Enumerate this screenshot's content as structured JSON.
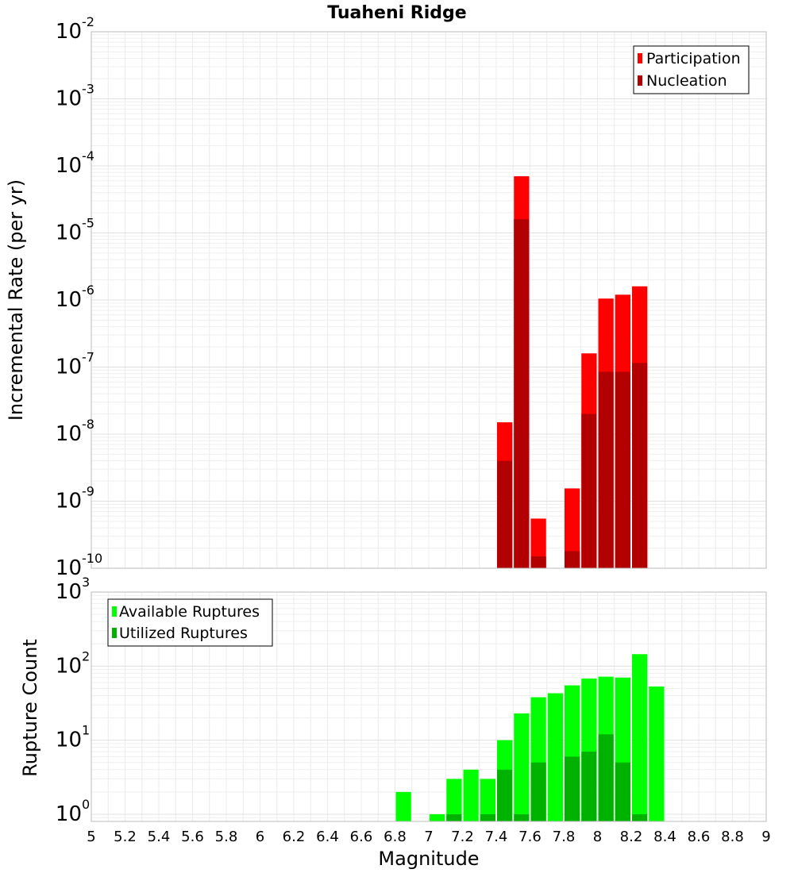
{
  "chart_data": [
    {
      "type": "bar",
      "title": "Tuaheni Ridge",
      "xlabel": "Magnitude",
      "ylabel": "Incremental Rate (per yr)",
      "yscale": "log",
      "ylim": [
        1e-10,
        0.01
      ],
      "xlim": [
        5,
        9
      ],
      "y_tick_exponents": [
        "-2",
        "-3",
        "-4",
        "-5",
        "-6",
        "-7",
        "-8",
        "-9",
        "-10"
      ],
      "y_tick_base": "10",
      "legend": {
        "placement": "top-right",
        "entries": [
          "Participation",
          "Nucleation"
        ]
      },
      "grid": true,
      "colors": {
        "participation": "#ff0000",
        "nucleation": "#b20000"
      },
      "series": [
        {
          "name": "Participation",
          "x": [
            7.45,
            7.55,
            7.65,
            7.85,
            7.95,
            8.05,
            8.15,
            8.25
          ],
          "values": [
            1.5e-08,
            7e-05,
            5.5e-10,
            1.55e-09,
            1.6e-07,
            1.05e-06,
            1.2e-06,
            1.6e-06
          ]
        },
        {
          "name": "Nucleation",
          "x": [
            7.45,
            7.55,
            7.65,
            7.85,
            7.95,
            8.05,
            8.15,
            8.25
          ],
          "values": [
            4e-09,
            1.6e-05,
            1.5e-10,
            1.8e-10,
            2e-08,
            8.5e-08,
            8.5e-08,
            1.15e-07
          ]
        }
      ]
    },
    {
      "type": "bar",
      "xlabel": "Magnitude",
      "ylabel": "Rupture Count",
      "yscale": "log",
      "ylim": [
        0.8,
        1000
      ],
      "xlim": [
        5,
        9
      ],
      "y_tick_exponents": [
        "3",
        "2",
        "1",
        "0"
      ],
      "y_tick_base": "10",
      "x_ticks": [
        "5",
        "5.2",
        "5.4",
        "5.6",
        "5.8",
        "6",
        "6.2",
        "6.4",
        "6.6",
        "6.8",
        "7",
        "7.2",
        "7.4",
        "7.6",
        "7.8",
        "8",
        "8.2",
        "8.4",
        "8.6",
        "8.8",
        "9"
      ],
      "legend": {
        "placement": "top-left",
        "entries": [
          "Available Ruptures",
          "Utilized Ruptures"
        ]
      },
      "grid": true,
      "colors": {
        "available": "#00ff00",
        "utilized": "#00b200"
      },
      "series": [
        {
          "name": "Available Ruptures",
          "x": [
            6.85,
            7.05,
            7.15,
            7.25,
            7.35,
            7.45,
            7.55,
            7.65,
            7.75,
            7.85,
            7.95,
            8.05,
            8.15,
            8.25,
            8.35
          ],
          "values": [
            2,
            1,
            3,
            4,
            3,
            10,
            23,
            38,
            43,
            55,
            68,
            72,
            70,
            145,
            53
          ]
        },
        {
          "name": "Utilized Ruptures",
          "x": [
            7.15,
            7.35,
            7.45,
            7.55,
            7.65,
            7.85,
            7.95,
            8.05,
            8.15,
            8.25
          ],
          "values": [
            1,
            1,
            4,
            1,
            5,
            6,
            7,
            12,
            5,
            1
          ]
        }
      ]
    }
  ]
}
